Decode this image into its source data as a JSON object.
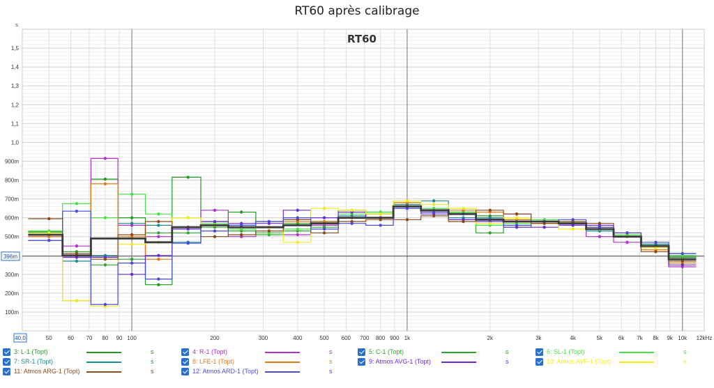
{
  "chart_data": {
    "type": "line",
    "title": "RT60 après calibrage",
    "plot_label": "RT60",
    "ylabel": "s",
    "xlabel": "",
    "x_scale": "log",
    "xlim": [
      40,
      12000
    ],
    "ylim": [
      0,
      1.6
    ],
    "grid": true,
    "legend_position": "bottom",
    "marker_value": 0.396,
    "marker_label": "396m",
    "x_start_label": "40,0",
    "x_tick_labels": [
      {
        "v": 50,
        "t": "50"
      },
      {
        "v": 60,
        "t": "60"
      },
      {
        "v": 70,
        "t": "70"
      },
      {
        "v": 80,
        "t": "80"
      },
      {
        "v": 90,
        "t": "90"
      },
      {
        "v": 100,
        "t": "100"
      },
      {
        "v": 200,
        "t": "200"
      },
      {
        "v": 300,
        "t": "300"
      },
      {
        "v": 400,
        "t": "400"
      },
      {
        "v": 500,
        "t": "500"
      },
      {
        "v": 600,
        "t": "600"
      },
      {
        "v": 700,
        "t": "700"
      },
      {
        "v": 800,
        "t": "800"
      },
      {
        "v": 900,
        "t": "900"
      },
      {
        "v": 1000,
        "t": "1k"
      },
      {
        "v": 2000,
        "t": "2k"
      },
      {
        "v": 3000,
        "t": "3k"
      },
      {
        "v": 4000,
        "t": "4k"
      },
      {
        "v": 5000,
        "t": "5k"
      },
      {
        "v": 6000,
        "t": "6k"
      },
      {
        "v": 7000,
        "t": "7k"
      },
      {
        "v": 8000,
        "t": "8k"
      },
      {
        "v": 9000,
        "t": "9k"
      },
      {
        "v": 10000,
        "t": "10k"
      },
      {
        "v": 12000,
        "t": "12kHz"
      }
    ],
    "y_tick_labels": [
      {
        "v": 0.1,
        "t": "100m"
      },
      {
        "v": 0.2,
        "t": "200m"
      },
      {
        "v": 0.3,
        "t": "300m"
      },
      {
        "v": 0.4,
        "t": "400m"
      },
      {
        "v": 0.5,
        "t": "500m"
      },
      {
        "v": 0.6,
        "t": "600m"
      },
      {
        "v": 0.7,
        "t": "700m"
      },
      {
        "v": 0.8,
        "t": "800m"
      },
      {
        "v": 0.9,
        "t": "900m"
      },
      {
        "v": 1.0,
        "t": "1,0"
      },
      {
        "v": 1.1,
        "t": "1,1"
      },
      {
        "v": 1.2,
        "t": "1,2"
      },
      {
        "v": 1.3,
        "t": "1,3"
      },
      {
        "v": 1.4,
        "t": "1,4"
      },
      {
        "v": 1.5,
        "t": "1,5"
      }
    ],
    "y_unit_label": "s",
    "bands": [
      [
        42,
        56
      ],
      [
        56,
        71
      ],
      [
        71,
        89
      ],
      [
        89,
        112
      ],
      [
        112,
        140
      ],
      [
        140,
        178
      ],
      [
        178,
        224
      ],
      [
        224,
        282
      ],
      [
        282,
        355
      ],
      [
        355,
        447
      ],
      [
        447,
        562
      ],
      [
        562,
        708
      ],
      [
        708,
        891
      ],
      [
        891,
        1122
      ],
      [
        1122,
        1413
      ],
      [
        1413,
        1778
      ],
      [
        1778,
        2239
      ],
      [
        2239,
        2818
      ],
      [
        2818,
        3548
      ],
      [
        3548,
        4467
      ],
      [
        4467,
        5623
      ],
      [
        5623,
        7079
      ],
      [
        7079,
        8913
      ],
      [
        8913,
        11220
      ]
    ],
    "band_centers": [
      50,
      63,
      80,
      100,
      125,
      160,
      200,
      250,
      315,
      400,
      500,
      630,
      800,
      1000,
      1250,
      1600,
      2000,
      2500,
      3150,
      4000,
      5000,
      6300,
      8000,
      10000
    ],
    "series": [
      {
        "name": "3: L-1 (Topt)",
        "color": "#1f9a1f",
        "values": [
          0.525,
          0.42,
          0.805,
          0.6,
          0.245,
          0.815,
          0.58,
          0.63,
          0.55,
          0.57,
          0.58,
          0.64,
          0.62,
          0.67,
          0.64,
          0.63,
          0.61,
          0.55,
          0.57,
          0.57,
          0.54,
          0.5,
          0.46,
          0.39
        ]
      },
      {
        "name": "4: R-1 (Topt)",
        "color": "#b030c8",
        "values": [
          0.5,
          0.45,
          0.915,
          0.56,
          0.5,
          0.55,
          0.64,
          0.5,
          0.52,
          0.51,
          0.56,
          0.6,
          0.6,
          0.65,
          0.63,
          0.59,
          0.6,
          0.62,
          0.58,
          0.56,
          0.5,
          0.47,
          0.44,
          0.34
        ]
      },
      {
        "name": "5: C-1 (Topt)",
        "color": "#2aa62a",
        "values": [
          0.52,
          0.4,
          0.35,
          0.38,
          0.52,
          0.52,
          0.55,
          0.53,
          0.51,
          0.53,
          0.55,
          0.6,
          0.63,
          0.66,
          0.64,
          0.63,
          0.52,
          0.59,
          0.58,
          0.57,
          0.55,
          0.5,
          0.45,
          0.39
        ]
      },
      {
        "name": "6: SL-1 (Topt)",
        "color": "#44e044",
        "values": [
          0.53,
          0.675,
          0.6,
          0.725,
          0.62,
          0.6,
          0.57,
          0.54,
          0.52,
          0.54,
          0.57,
          0.62,
          0.63,
          0.68,
          0.65,
          0.63,
          0.56,
          0.57,
          0.59,
          0.58,
          0.55,
          0.51,
          0.46,
          0.4
        ]
      },
      {
        "name": "7: SR-1 (Topt)",
        "color": "#1a8a8a",
        "values": [
          0.51,
          0.37,
          0.4,
          0.57,
          0.56,
          0.47,
          0.56,
          0.56,
          0.58,
          0.59,
          0.58,
          0.61,
          0.62,
          0.67,
          0.69,
          0.6,
          0.6,
          0.58,
          0.58,
          0.57,
          0.53,
          0.5,
          0.46,
          0.41
        ]
      },
      {
        "name": "8: LFE-1 (Topt)",
        "color": "#e07818",
        "values": [
          0.5,
          0.16,
          0.78,
          0.5,
          0.38,
          0.55,
          0.56,
          0.55,
          0.55,
          0.58,
          0.58,
          0.6,
          0.6,
          0.68,
          0.63,
          0.64,
          0.63,
          0.59,
          0.57,
          0.57,
          0.55,
          0.5,
          0.43,
          0.36
        ]
      },
      {
        "name": "9: Atmos AVG-1 (Topt)",
        "color": "#6a2ad8",
        "values": [
          0.48,
          0.39,
          0.39,
          0.3,
          0.4,
          0.54,
          0.58,
          0.57,
          0.57,
          0.64,
          0.6,
          0.63,
          0.6,
          0.66,
          0.62,
          0.59,
          0.58,
          0.55,
          0.55,
          0.56,
          0.56,
          0.5,
          0.45,
          0.35
        ]
      },
      {
        "name": "10: Atmos AVF-1 (Topt)",
        "color": "#f2ea1a",
        "values": [
          0.52,
          0.16,
          0.13,
          0.46,
          0.47,
          0.6,
          0.56,
          0.55,
          0.55,
          0.47,
          0.65,
          0.64,
          0.62,
          0.69,
          0.67,
          0.65,
          0.57,
          0.6,
          0.58,
          0.54,
          0.54,
          0.5,
          0.44,
          0.38
        ]
      },
      {
        "name": "11: Atmos ARG-1 (Topt)",
        "color": "#8a4a18",
        "values": [
          0.595,
          0.41,
          0.38,
          0.51,
          0.58,
          0.55,
          0.5,
          0.51,
          0.53,
          0.59,
          0.52,
          0.58,
          0.59,
          0.59,
          0.61,
          0.58,
          0.64,
          0.62,
          0.57,
          0.58,
          0.57,
          0.52,
          0.42,
          0.37
        ]
      },
      {
        "name": "12: Atmos ARD-1 (Topt)",
        "color": "#4a4ad8",
        "values": [
          0.48,
          0.635,
          0.14,
          0.36,
          0.275,
          0.465,
          0.53,
          0.56,
          0.58,
          0.6,
          0.54,
          0.57,
          0.56,
          0.65,
          0.63,
          0.62,
          0.59,
          0.56,
          0.58,
          0.59,
          0.55,
          0.52,
          0.47,
          0.41
        ]
      }
    ],
    "average": {
      "color": "#3a3a3a",
      "values": [
        0.51,
        0.4,
        0.49,
        0.49,
        0.47,
        0.55,
        0.56,
        0.55,
        0.55,
        0.56,
        0.57,
        0.6,
        0.6,
        0.66,
        0.64,
        0.62,
        0.59,
        0.58,
        0.58,
        0.57,
        0.54,
        0.5,
        0.45,
        0.38
      ]
    }
  },
  "legend": {
    "unit": "s",
    "items": [
      {
        "label": "3: L-1 (Topt)",
        "color": "#1f9a1f"
      },
      {
        "label": "4: R-1 (Topt)",
        "color": "#b030c8"
      },
      {
        "label": "5: C-1 (Topt)",
        "color": "#2aa62a"
      },
      {
        "label": "6: SL-1 (Topt)",
        "color": "#44e044"
      },
      {
        "label": "7: SR-1 (Topt)",
        "color": "#1a8a8a"
      },
      {
        "label": "8: LFE-1 (Topt)",
        "color": "#e07818"
      },
      {
        "label": "9: Atmos AVG-1 (Topt)",
        "color": "#6a2ad8"
      },
      {
        "label": "10: Atmos AVF-1 (Topt)",
        "color": "#f2ea1a"
      },
      {
        "label": "11: Atmos ARG-1 (Topt)",
        "color": "#8a4a18"
      },
      {
        "label": "12: Atmos ARD-1 (Topt)",
        "color": "#4a4ad8"
      }
    ]
  }
}
